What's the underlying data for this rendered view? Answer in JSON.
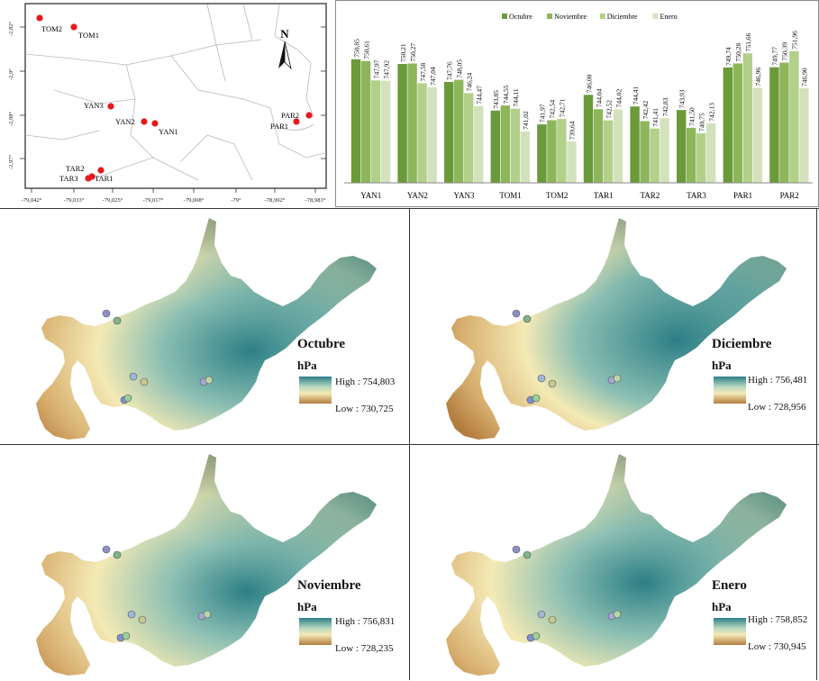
{
  "site_map": {
    "lat_ticks": [
      "-2,82°",
      "-2,9°",
      "-2,98°",
      "-2,97°"
    ],
    "lon_ticks": [
      "-79,042°",
      "-79,033°",
      "-79,025°",
      "-79,017°",
      "-79,008°",
      "-79°",
      "-78,992°",
      "-78,983°"
    ],
    "north_label": "N",
    "point_color": "#e8191d",
    "stations": [
      {
        "label": "TOM2"
      },
      {
        "label": "TOM1"
      },
      {
        "label": "YAN3"
      },
      {
        "label": "YAN2"
      },
      {
        "label": "YAN1"
      },
      {
        "label": "PAR2"
      },
      {
        "label": "PAR1"
      },
      {
        "label": "TAR2"
      },
      {
        "label": "TAR3"
      },
      {
        "label": "TAR1"
      }
    ]
  },
  "chart_data": {
    "type": "bar",
    "categories": [
      "YAN1",
      "YAN2",
      "YAN3",
      "TOM1",
      "TOM2",
      "TAR1",
      "TAR2",
      "TAR3",
      "PAR1",
      "PAR2"
    ],
    "series": [
      {
        "name": "Octubre",
        "color": "#6b9a3a",
        "values": [
          750.85,
          750.21,
          747.76,
          743.85,
          741.97,
          746.0,
          744.41,
          743.93,
          749.74,
          749.77
        ]
      },
      {
        "name": "Noviembre",
        "color": "#8db65b",
        "values": [
          750.61,
          750.27,
          748.05,
          744.55,
          742.54,
          744.04,
          742.42,
          741.5,
          750.28,
          750.39
        ]
      },
      {
        "name": "Diciembre",
        "color": "#b2d08a",
        "values": [
          747.97,
          747.58,
          746.24,
          744.11,
          742.71,
          742.52,
          741.41,
          740.75,
          751.66,
          751.96
        ]
      },
      {
        "name": "Enero",
        "color": "#d3e2bd",
        "values": [
          747.92,
          747.04,
          744.47,
          741.02,
          739.64,
          744.02,
          742.83,
          742.13,
          746.96,
          746.9
        ]
      }
    ],
    "label_strings": [
      [
        "750,85",
        "750,61",
        "747,97",
        "747,92"
      ],
      [
        "750,21",
        "750,27",
        "747,58",
        "747,04"
      ],
      [
        "747,76",
        "748,05",
        "746,24",
        "744,47"
      ],
      [
        "743,85",
        "744,55",
        "744,11",
        "741,02"
      ],
      [
        "741,97",
        "742,54",
        "742,71",
        "739,64"
      ],
      [
        "746,00",
        "744,04",
        "742,52",
        "744,02"
      ],
      [
        "744,41",
        "742,42",
        "741,41",
        "742,83"
      ],
      [
        "743,93",
        "741,50",
        "740,75",
        "742,13"
      ],
      [
        "749,74",
        "750,28",
        "751,66",
        "746,96"
      ],
      [
        "749,77",
        "750,39",
        "751,96",
        "746,90"
      ]
    ],
    "ylim": [
      734,
      755
    ],
    "grid": false,
    "legend_position": "top"
  },
  "panels": [
    {
      "title": "Octubre",
      "unit": "hPa",
      "high": "High : 754,803",
      "low": "Low : 730,725"
    },
    {
      "title": "Diciembre",
      "unit": "hPa",
      "high": "High : 756,481",
      "low": "Low : 728,956"
    },
    {
      "title": "Noviembre",
      "unit": "hPa",
      "high": "High : 756,831",
      "low": "Low : 728,235"
    },
    {
      "title": "Enero",
      "unit": "hPa",
      "high": "High : 758,852",
      "low": "Low : 730,945"
    }
  ],
  "colors": {
    "high": "#2c7f86",
    "mid": "#f4eab5",
    "low": "#b37d3f"
  }
}
